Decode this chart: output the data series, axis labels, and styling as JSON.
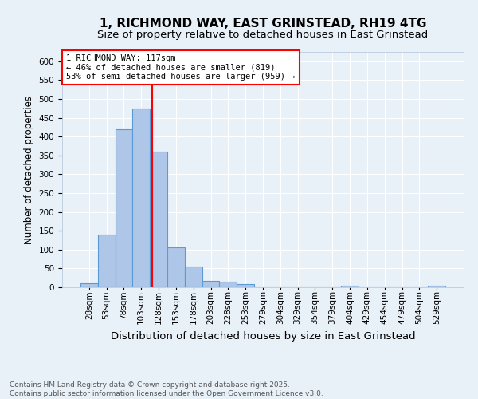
{
  "title": "1, RICHMOND WAY, EAST GRINSTEAD, RH19 4TG",
  "subtitle": "Size of property relative to detached houses in East Grinstead",
  "xlabel": "Distribution of detached houses by size in East Grinstead",
  "ylabel": "Number of detached properties",
  "footnote": "Contains HM Land Registry data © Crown copyright and database right 2025.\nContains public sector information licensed under the Open Government Licence v3.0.",
  "bin_labels": [
    "28sqm",
    "53sqm",
    "78sqm",
    "103sqm",
    "128sqm",
    "153sqm",
    "178sqm",
    "203sqm",
    "228sqm",
    "253sqm",
    "279sqm",
    "304sqm",
    "329sqm",
    "354sqm",
    "379sqm",
    "404sqm",
    "429sqm",
    "454sqm",
    "479sqm",
    "504sqm",
    "529sqm"
  ],
  "bar_values": [
    10,
    140,
    420,
    475,
    360,
    105,
    55,
    17,
    15,
    8,
    0,
    0,
    0,
    0,
    0,
    5,
    0,
    0,
    0,
    0,
    5
  ],
  "bar_color": "#aec6e8",
  "bar_edge_color": "#5b9bd5",
  "bg_color": "#e8f0f8",
  "grid_color": "#ffffff",
  "vline_x": 3.64,
  "vline_color": "#ff0000",
  "annotation_text": "1 RICHMOND WAY: 117sqm\n← 46% of detached houses are smaller (819)\n53% of semi-detached houses are larger (959) →",
  "ylim": [
    0,
    625
  ],
  "yticks": [
    0,
    50,
    100,
    150,
    200,
    250,
    300,
    350,
    400,
    450,
    500,
    550,
    600
  ],
  "title_fontsize": 11,
  "subtitle_fontsize": 9.5,
  "xlabel_fontsize": 9.5,
  "ylabel_fontsize": 8.5,
  "tick_fontsize": 7.5,
  "annotation_fontsize": 7.5,
  "footnote_fontsize": 6.5
}
